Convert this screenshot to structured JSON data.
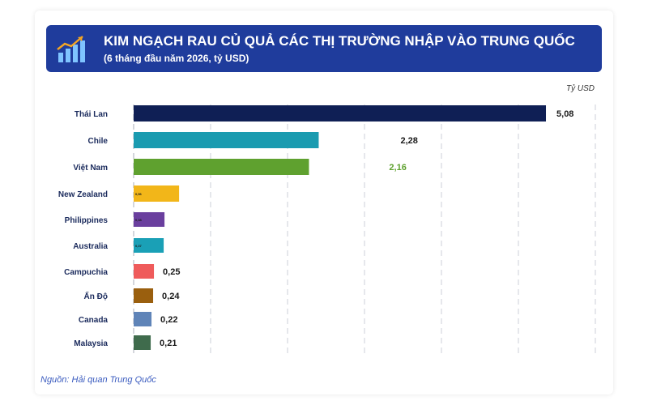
{
  "header": {
    "title": "KIM NGẠCH RAU CỦ QUẢ CÁC THỊ TRƯỜNG NHẬP VÀO TRUNG QUỐC",
    "subtitle": "(6 tháng đầu năm 2026, tỷ USD)",
    "icon": "bar-chart-growth-icon"
  },
  "unit_label": "Tỷ USD",
  "source": "Nguồn: Hải quan Trung Quốc",
  "colors": {
    "header_bg": "#1f3c9c",
    "label_text": "#1a2a5c"
  },
  "chart_data": {
    "type": "bar",
    "orientation": "horizontal",
    "categories": [
      "Thái Lan",
      "Chile",
      "Việt Nam",
      "New Zealand",
      "Philippines",
      "Australia",
      "Campuchia",
      "Ấn Độ",
      "Canada",
      "Malaysia"
    ],
    "values": [
      5.08,
      2.28,
      2.16,
      0.56,
      0.38,
      0.37,
      0.25,
      0.24,
      0.22,
      0.21
    ],
    "value_labels": [
      "5,08",
      "2,28",
      "2,16",
      "0,56",
      "0,38",
      "0,37",
      "0,25",
      "0,24",
      "0,22",
      "0,21"
    ],
    "bar_colors": [
      "#0f1f55",
      "#1a9bb0",
      "#5fa12f",
      "#f2b619",
      "#6a3f9e",
      "#1aa0b6",
      "#ef5b5b",
      "#9a5f0e",
      "#5f84b8",
      "#3f6b4c"
    ],
    "value_label_colors": [
      "#1a1a1a",
      "#1a1a1a",
      "#5fa12f",
      "#1a1a1a",
      "#1a1a1a",
      "#1a1a1a",
      "#1a1a1a",
      "#1a1a1a",
      "#1a1a1a",
      "#1a1a1a"
    ],
    "value_label_inside": [
      false,
      false,
      false,
      true,
      true,
      true,
      false,
      false,
      false,
      false
    ],
    "xlim": [
      0,
      6
    ],
    "grid": true,
    "xlabel": "",
    "ylabel": ""
  }
}
